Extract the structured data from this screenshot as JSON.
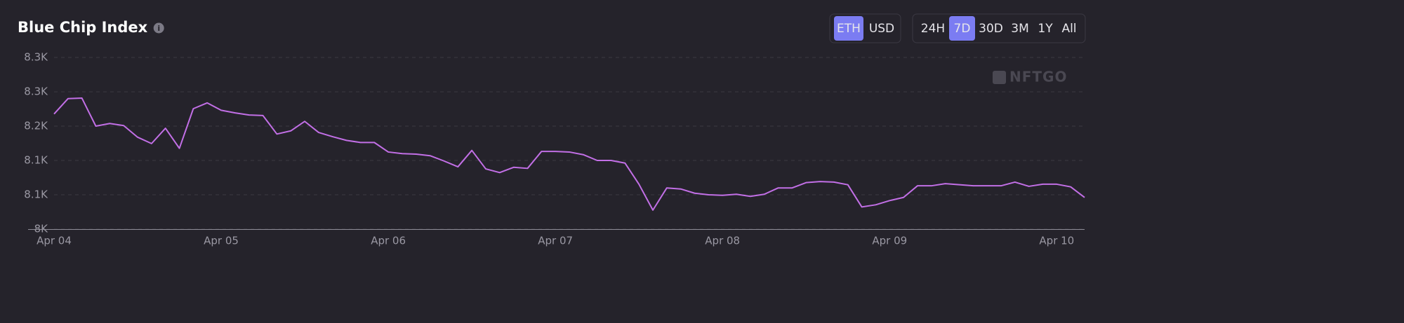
{
  "chart_data": {
    "type": "line",
    "title": "Blue Chip Index",
    "categories": [
      "Apr 04",
      null,
      null,
      null,
      null,
      null,
      null,
      null,
      null,
      null,
      null,
      null,
      "Apr 05",
      null,
      null,
      null,
      null,
      null,
      null,
      null,
      null,
      null,
      null,
      null,
      "Apr 06",
      null,
      null,
      null,
      null,
      null,
      null,
      null,
      null,
      null,
      null,
      null,
      "Apr 07",
      null,
      null,
      null,
      null,
      null,
      null,
      null,
      null,
      null,
      null,
      null,
      "Apr 08",
      null,
      null,
      null,
      null,
      null,
      null,
      null,
      null,
      null,
      null,
      null,
      "Apr 09",
      null,
      null,
      null,
      null,
      null,
      null,
      null,
      null,
      null,
      null,
      null,
      "Apr 10",
      null,
      null
    ],
    "values": [
      8218,
      8247,
      8248,
      8195,
      8200,
      8196,
      8174,
      8162,
      8191,
      8153,
      8228,
      8239,
      8225,
      8220,
      8216,
      8215,
      8180,
      8186,
      8204,
      8183,
      8175,
      8168,
      8164,
      8164,
      8146,
      8143,
      8142,
      8139,
      8129,
      8118,
      8149,
      8114,
      8107,
      8117,
      8115,
      8147,
      8147,
      8146,
      8141,
      8130,
      8130,
      8125,
      8085,
      8036,
      8078,
      8076,
      8068,
      8065,
      8064,
      8066,
      8062,
      8066,
      8078,
      8078,
      8088,
      8090,
      8089,
      8084,
      8042,
      8046,
      8054,
      8060,
      8082,
      8082,
      8086,
      8084,
      8082,
      8082,
      8082,
      8089,
      8081,
      8085,
      8085,
      8080,
      8060
    ],
    "color": "#c26fe6",
    "ylim": [
      8000,
      8325
    ],
    "yticks": [
      {
        "value": 8000,
        "label": "8K"
      },
      {
        "value": 8065,
        "label": "8.1K"
      },
      {
        "value": 8130,
        "label": "8.1K"
      },
      {
        "value": 8195,
        "label": "8.2K"
      },
      {
        "value": 8260,
        "label": "8.3K"
      },
      {
        "value": 8325,
        "label": "8.3K"
      }
    ],
    "grid": true
  },
  "toolbar": {
    "currency": [
      "ETH",
      "USD"
    ],
    "currency_active": 0,
    "ranges": [
      "24H",
      "7D",
      "30D",
      "3M",
      "1Y",
      "All"
    ],
    "range_active": 1
  },
  "watermark": "NFTGO"
}
